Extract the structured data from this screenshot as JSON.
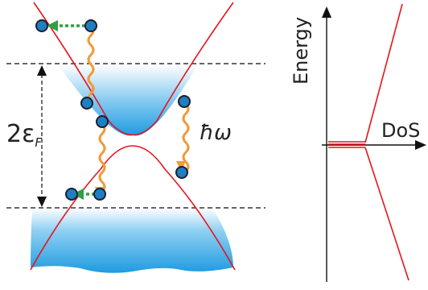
{
  "labels": {
    "gap": "2ε",
    "gap_subscript": "F",
    "photon": "ħω",
    "energy_axis": "Energy",
    "dos_axis": "DoS"
  },
  "colors": {
    "band": "#e8141c",
    "fill_top": "#ffffff",
    "fill_bottom": "#1e9be0",
    "electron": "#1f7fc3",
    "electron_stroke": "#1a2030",
    "photon": "#f29a38",
    "relax": "#2ea043",
    "dash": "#333333"
  }
}
